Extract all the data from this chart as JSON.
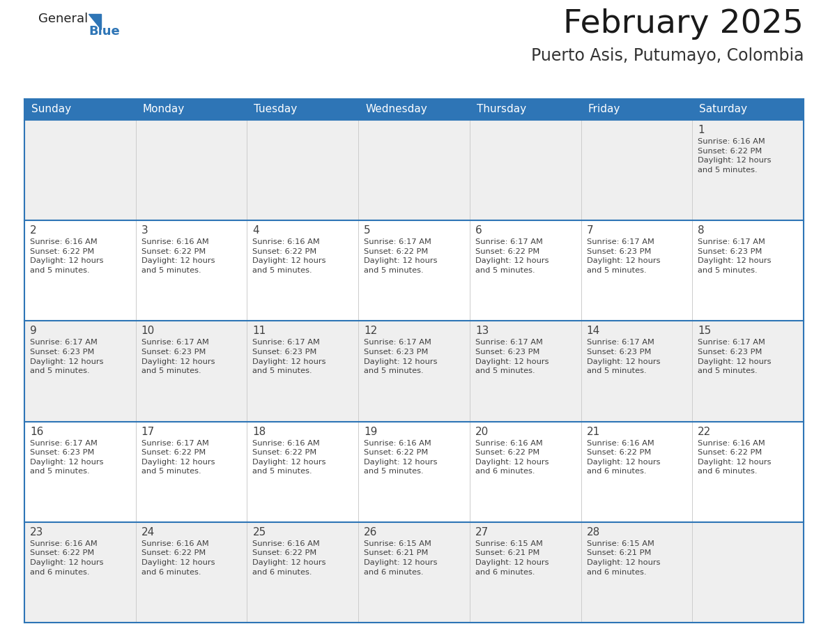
{
  "title": "February 2025",
  "subtitle": "Puerto Asis, Putumayo, Colombia",
  "header_bg": "#2E75B6",
  "header_text_color": "#FFFFFF",
  "cell_bg_odd": "#EFEFEF",
  "cell_bg_even": "#FFFFFF",
  "border_color": "#2E75B6",
  "row_separator_color": "#2E75B6",
  "col_separator_color": "#CCCCCC",
  "text_color": "#404040",
  "days_of_week": [
    "Sunday",
    "Monday",
    "Tuesday",
    "Wednesday",
    "Thursday",
    "Friday",
    "Saturday"
  ],
  "weeks": [
    [
      {
        "day": null,
        "info": null
      },
      {
        "day": null,
        "info": null
      },
      {
        "day": null,
        "info": null
      },
      {
        "day": null,
        "info": null
      },
      {
        "day": null,
        "info": null
      },
      {
        "day": null,
        "info": null
      },
      {
        "day": 1,
        "info": "Sunrise: 6:16 AM\nSunset: 6:22 PM\nDaylight: 12 hours\nand 5 minutes."
      }
    ],
    [
      {
        "day": 2,
        "info": "Sunrise: 6:16 AM\nSunset: 6:22 PM\nDaylight: 12 hours\nand 5 minutes."
      },
      {
        "day": 3,
        "info": "Sunrise: 6:16 AM\nSunset: 6:22 PM\nDaylight: 12 hours\nand 5 minutes."
      },
      {
        "day": 4,
        "info": "Sunrise: 6:16 AM\nSunset: 6:22 PM\nDaylight: 12 hours\nand 5 minutes."
      },
      {
        "day": 5,
        "info": "Sunrise: 6:17 AM\nSunset: 6:22 PM\nDaylight: 12 hours\nand 5 minutes."
      },
      {
        "day": 6,
        "info": "Sunrise: 6:17 AM\nSunset: 6:22 PM\nDaylight: 12 hours\nand 5 minutes."
      },
      {
        "day": 7,
        "info": "Sunrise: 6:17 AM\nSunset: 6:23 PM\nDaylight: 12 hours\nand 5 minutes."
      },
      {
        "day": 8,
        "info": "Sunrise: 6:17 AM\nSunset: 6:23 PM\nDaylight: 12 hours\nand 5 minutes."
      }
    ],
    [
      {
        "day": 9,
        "info": "Sunrise: 6:17 AM\nSunset: 6:23 PM\nDaylight: 12 hours\nand 5 minutes."
      },
      {
        "day": 10,
        "info": "Sunrise: 6:17 AM\nSunset: 6:23 PM\nDaylight: 12 hours\nand 5 minutes."
      },
      {
        "day": 11,
        "info": "Sunrise: 6:17 AM\nSunset: 6:23 PM\nDaylight: 12 hours\nand 5 minutes."
      },
      {
        "day": 12,
        "info": "Sunrise: 6:17 AM\nSunset: 6:23 PM\nDaylight: 12 hours\nand 5 minutes."
      },
      {
        "day": 13,
        "info": "Sunrise: 6:17 AM\nSunset: 6:23 PM\nDaylight: 12 hours\nand 5 minutes."
      },
      {
        "day": 14,
        "info": "Sunrise: 6:17 AM\nSunset: 6:23 PM\nDaylight: 12 hours\nand 5 minutes."
      },
      {
        "day": 15,
        "info": "Sunrise: 6:17 AM\nSunset: 6:23 PM\nDaylight: 12 hours\nand 5 minutes."
      }
    ],
    [
      {
        "day": 16,
        "info": "Sunrise: 6:17 AM\nSunset: 6:23 PM\nDaylight: 12 hours\nand 5 minutes."
      },
      {
        "day": 17,
        "info": "Sunrise: 6:17 AM\nSunset: 6:22 PM\nDaylight: 12 hours\nand 5 minutes."
      },
      {
        "day": 18,
        "info": "Sunrise: 6:16 AM\nSunset: 6:22 PM\nDaylight: 12 hours\nand 5 minutes."
      },
      {
        "day": 19,
        "info": "Sunrise: 6:16 AM\nSunset: 6:22 PM\nDaylight: 12 hours\nand 5 minutes."
      },
      {
        "day": 20,
        "info": "Sunrise: 6:16 AM\nSunset: 6:22 PM\nDaylight: 12 hours\nand 6 minutes."
      },
      {
        "day": 21,
        "info": "Sunrise: 6:16 AM\nSunset: 6:22 PM\nDaylight: 12 hours\nand 6 minutes."
      },
      {
        "day": 22,
        "info": "Sunrise: 6:16 AM\nSunset: 6:22 PM\nDaylight: 12 hours\nand 6 minutes."
      }
    ],
    [
      {
        "day": 23,
        "info": "Sunrise: 6:16 AM\nSunset: 6:22 PM\nDaylight: 12 hours\nand 6 minutes."
      },
      {
        "day": 24,
        "info": "Sunrise: 6:16 AM\nSunset: 6:22 PM\nDaylight: 12 hours\nand 6 minutes."
      },
      {
        "day": 25,
        "info": "Sunrise: 6:16 AM\nSunset: 6:22 PM\nDaylight: 12 hours\nand 6 minutes."
      },
      {
        "day": 26,
        "info": "Sunrise: 6:15 AM\nSunset: 6:21 PM\nDaylight: 12 hours\nand 6 minutes."
      },
      {
        "day": 27,
        "info": "Sunrise: 6:15 AM\nSunset: 6:21 PM\nDaylight: 12 hours\nand 6 minutes."
      },
      {
        "day": 28,
        "info": "Sunrise: 6:15 AM\nSunset: 6:21 PM\nDaylight: 12 hours\nand 6 minutes."
      },
      {
        "day": null,
        "info": null
      }
    ]
  ],
  "logo_text_general": "General",
  "logo_text_blue": "Blue",
  "logo_color_general": "#222222",
  "logo_color_blue": "#2E75B6",
  "fig_width": 11.88,
  "fig_height": 9.18,
  "dpi": 100
}
